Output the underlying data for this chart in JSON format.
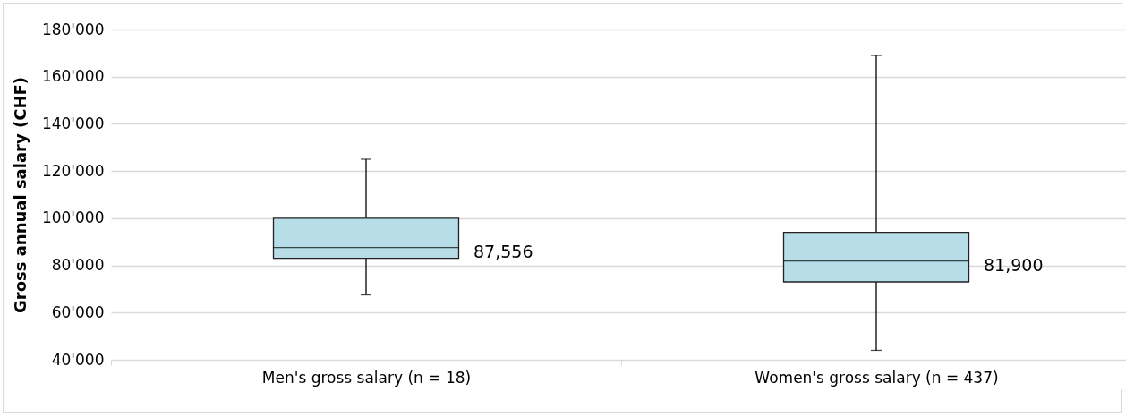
{
  "chart_data": {
    "type": "box",
    "ylabel": "Gross annual salary (CHF)",
    "categories": [
      "Men's gross salary (n = 18)",
      "Women's gross salary (n = 437)"
    ],
    "color": "#b7dde8",
    "boxes": [
      {
        "low": 67500,
        "q1": 83000,
        "median": 87556,
        "q3": 100000,
        "high": 125000
      },
      {
        "low": 44000,
        "q1": 73000,
        "median": 81900,
        "q3": 94000,
        "high": 169000
      }
    ],
    "value_labels": [
      "87,556",
      "81,900"
    ],
    "ylim": [
      40000,
      180000
    ],
    "yticks": [
      {
        "value": 40000,
        "label": "40'000"
      },
      {
        "value": 60000,
        "label": "60'000"
      },
      {
        "value": 80000,
        "label": "80'000"
      },
      {
        "value": 100000,
        "label": "100'000"
      },
      {
        "value": 120000,
        "label": "120'000"
      },
      {
        "value": 140000,
        "label": "140'000"
      },
      {
        "value": 160000,
        "label": "160'000"
      },
      {
        "value": 180000,
        "label": "180'000"
      }
    ],
    "grid": "y"
  }
}
